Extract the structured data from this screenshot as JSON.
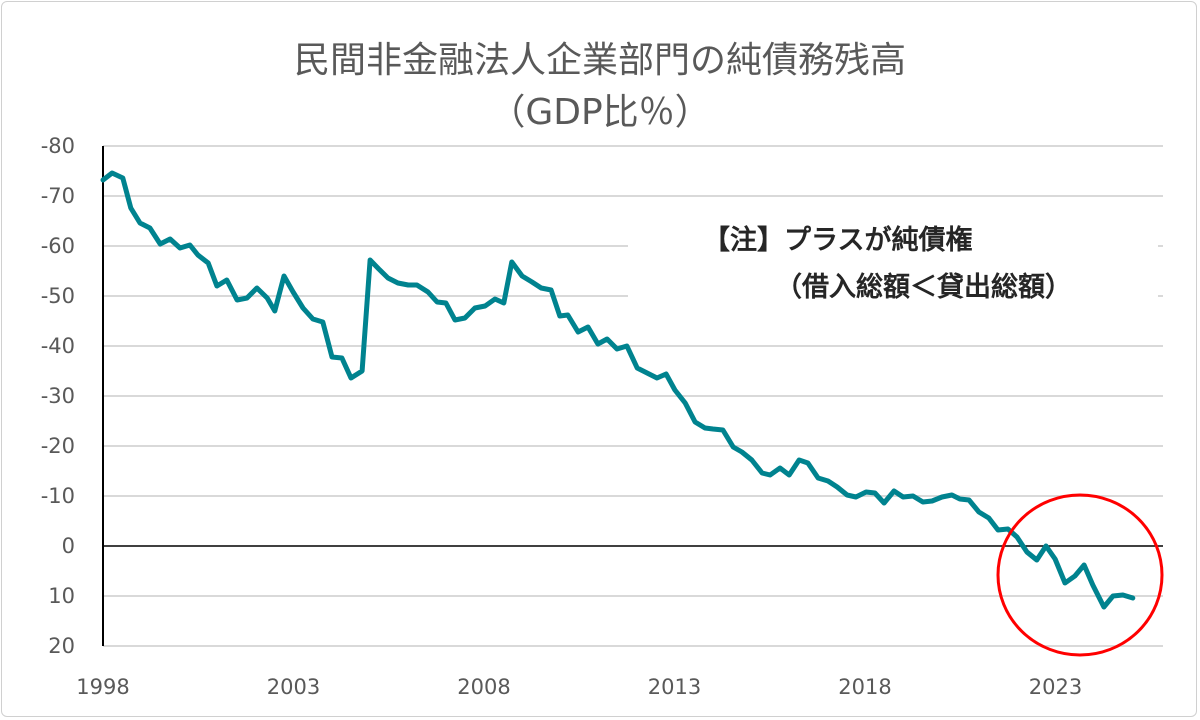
{
  "chart_data": {
    "type": "line",
    "title": "民間非金融法人企業部門の純債務残高",
    "subtitle": "（GDP比％）",
    "xlabel": "",
    "ylabel": "",
    "xlim": [
      1998,
      2025.5
    ],
    "ylim": [
      -80,
      20
    ],
    "y_reversed": true,
    "grid": true,
    "x_ticks": [
      "1998",
      "2003",
      "2008",
      "2013",
      "2018",
      "2023"
    ],
    "y_ticks": [
      "-80",
      "-70",
      "-60",
      "-50",
      "-40",
      "-30",
      "-20",
      "-10",
      "0",
      "10",
      "20"
    ],
    "annotation": {
      "line1": "【注】プラスが純債権",
      "line2": "（借入総額＜貸出総額）"
    },
    "highlight": "red circle around 2022–2025",
    "colors": {
      "line": "#00838F",
      "highlight": "#FF0000",
      "zero_line": "#000000",
      "grid": "#D9D9D9"
    },
    "series": [
      {
        "x": [
          1998.0,
          1998.24,
          1998.52,
          1998.73,
          1998.97,
          1999.23,
          1999.5,
          1999.76,
          2000.02,
          2000.28,
          2000.49,
          2000.76,
          2000.99,
          2001.25,
          2001.52,
          2001.78,
          2002.04,
          2002.31,
          2002.51,
          2002.75,
          2002.99,
          2003.25,
          2003.51,
          2003.77,
          2004.01,
          2004.27,
          2004.51,
          2004.8,
          2005.01,
          2005.24,
          2005.48,
          2005.74,
          2006.01,
          2006.24,
          2006.53,
          2006.77,
          2007.0,
          2007.24,
          2007.5,
          2007.76,
          2008.03,
          2008.29,
          2008.52,
          2008.73,
          2009.0,
          2009.26,
          2009.5,
          2009.76,
          2009.99,
          2010.2,
          2010.47,
          2010.73,
          2010.99,
          2011.23,
          2011.49,
          2011.75,
          2012.02,
          2012.28,
          2012.54,
          2012.78,
          2013.01,
          2013.28,
          2013.54,
          2013.8,
          2014.01,
          2014.27,
          2014.54,
          2014.77,
          2015.03,
          2015.3,
          2015.51,
          2015.77,
          2016.01,
          2016.27,
          2016.5,
          2016.77,
          2017.03,
          2017.27,
          2017.53,
          2017.76,
          2018.03,
          2018.26,
          2018.5,
          2018.76,
          2019.0,
          2019.26,
          2019.52,
          2019.76,
          2020.02,
          2020.28,
          2020.49,
          2020.73,
          2020.99,
          2021.25,
          2021.49,
          2021.75,
          2021.99,
          2022.25,
          2022.51,
          2022.75,
          2022.99,
          2023.25,
          2023.51,
          2023.75,
          2023.98,
          2024.27,
          2024.51,
          2024.77,
          2025.03
        ],
        "y": [
          -73.2,
          -74.6,
          -73.6,
          -67.6,
          -64.6,
          -63.6,
          -60.4,
          -61.4,
          -59.6,
          -60.2,
          -58.2,
          -56.6,
          -52.0,
          -53.2,
          -49.2,
          -49.6,
          -51.6,
          -49.6,
          -47.0,
          -54.0,
          -50.8,
          -47.6,
          -45.4,
          -44.8,
          -37.8,
          -37.6,
          -33.6,
          -35.0,
          -57.2,
          -55.4,
          -53.6,
          -52.6,
          -52.2,
          -52.2,
          -50.8,
          -48.8,
          -48.6,
          -45.2,
          -45.6,
          -47.6,
          -48.0,
          -49.4,
          -48.6,
          -56.8,
          -54.0,
          -52.8,
          -51.6,
          -51.2,
          -46.0,
          -46.2,
          -42.8,
          -43.8,
          -40.4,
          -41.4,
          -39.4,
          -40.0,
          -35.6,
          -34.6,
          -33.6,
          -34.4,
          -31.2,
          -28.6,
          -24.8,
          -23.6,
          -23.4,
          -23.2,
          -19.8,
          -18.8,
          -17.2,
          -14.6,
          -14.2,
          -15.6,
          -14.2,
          -17.2,
          -16.6,
          -13.6,
          -13.0,
          -11.8,
          -10.2,
          -9.8,
          -10.8,
          -10.6,
          -8.6,
          -11.0,
          -9.8,
          -10.0,
          -8.8,
          -9.0,
          -9.8,
          -10.2,
          -9.4,
          -9.2,
          -6.8,
          -5.6,
          -3.2,
          -3.4,
          -1.8,
          1.2,
          2.8,
          0.0,
          2.6,
          7.4,
          6.0,
          3.8,
          7.8,
          12.2,
          10.0,
          9.8,
          10.4
        ]
      }
    ]
  }
}
